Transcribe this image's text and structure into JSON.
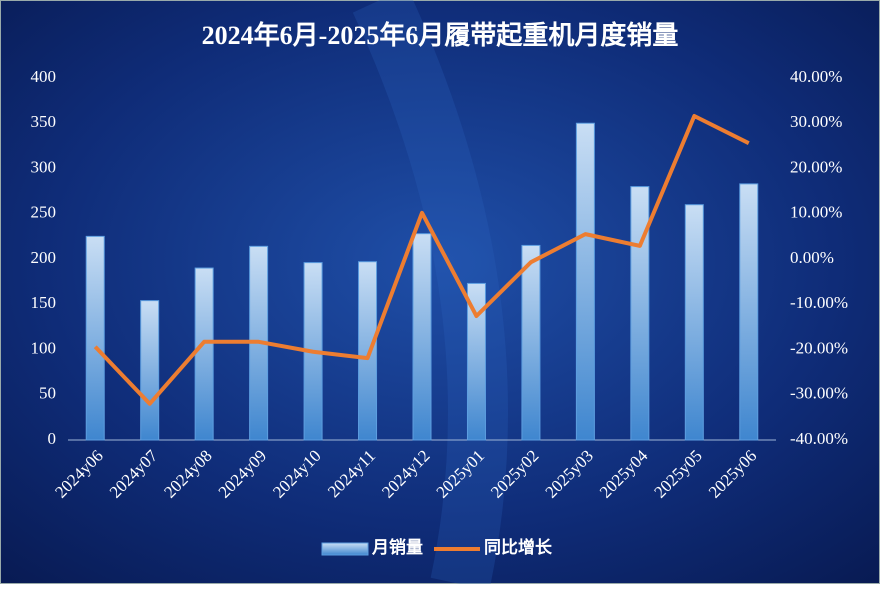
{
  "chart_data": {
    "type": "bar-line",
    "title": "2024年6月-2025年6月履带起重机月度销量",
    "categories": [
      "2024y06",
      "2024y07",
      "2024y08",
      "2024y09",
      "2024y10",
      "2024y11",
      "2024y12",
      "2025y01",
      "2025y02",
      "2025y03",
      "2025y04",
      "2025y05",
      "2025y06"
    ],
    "series": [
      {
        "name": "月销量",
        "type": "bar",
        "color": "#9cc3ea",
        "values": [
          225,
          154,
          190,
          214,
          196,
          197,
          228,
          173,
          215,
          350,
          280,
          260,
          283
        ]
      },
      {
        "name": "同比增长",
        "type": "line",
        "axis": "y2",
        "color": "#ed7d31",
        "values": [
          -19.4,
          -32.0,
          -18.3,
          -18.3,
          -20.5,
          -21.9,
          10.2,
          -12.6,
          -0.7,
          5.5,
          2.9,
          31.6,
          25.6
        ]
      }
    ],
    "ylim": [
      0,
      400
    ],
    "yticks": [
      0,
      50,
      100,
      150,
      200,
      250,
      300,
      350,
      400
    ],
    "y2lim": [
      -40,
      40
    ],
    "y2ticks": [
      {
        "value": -40,
        "label": "-40.00%"
      },
      {
        "value": -30,
        "label": "-30.00%"
      },
      {
        "value": -20,
        "label": "-20.00%"
      },
      {
        "value": -10,
        "label": "-10.00%"
      },
      {
        "value": 0,
        "label": "0.00%"
      },
      {
        "value": 10,
        "label": "10.00%"
      },
      {
        "value": 20,
        "label": "20.00%"
      },
      {
        "value": 30,
        "label": "30.00%"
      },
      {
        "value": 40,
        "label": "40.00%"
      }
    ],
    "legend": "bottom"
  }
}
